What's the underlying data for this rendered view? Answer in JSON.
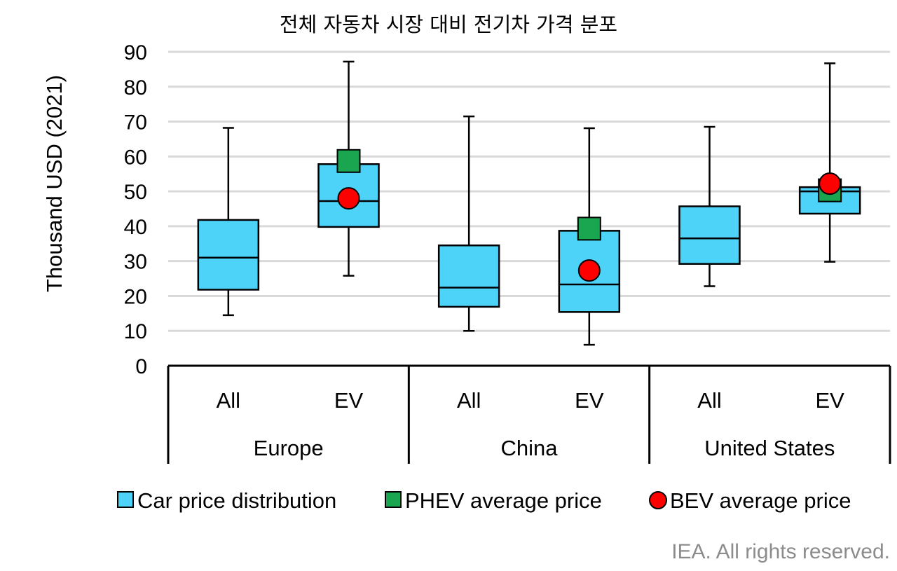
{
  "title": "전체 자동차 시장 대비 전기차 가격 분포",
  "credit": "IEA. All rights reserved.",
  "colors": {
    "box": "#4dd2f8",
    "phev": "#1aa650",
    "bev": "#ff0000",
    "grid": "#d9d9d9",
    "credit": "#8c8c8c"
  },
  "chart_data": {
    "type": "box",
    "ylabel": "Thousand USD (2021)",
    "ylim": [
      0,
      90
    ],
    "yticks": [
      0,
      10,
      20,
      30,
      40,
      50,
      60,
      70,
      80,
      90
    ],
    "grid": true,
    "legend_position": "bottom",
    "groups": [
      "Europe",
      "China",
      "United States"
    ],
    "categories": [
      {
        "group": "Europe",
        "label": "All",
        "min": 14.5,
        "q1": 21.8,
        "median": 31,
        "q3": 41.8,
        "max": 68.2
      },
      {
        "group": "Europe",
        "label": "EV",
        "min": 25.8,
        "q1": 39.8,
        "median": 47.2,
        "q3": 57.8,
        "max": 87.2,
        "phev_avg": 58.7,
        "bev_avg": 48
      },
      {
        "group": "China",
        "label": "All",
        "min": 10,
        "q1": 16.9,
        "median": 22.4,
        "q3": 34.5,
        "max": 71.5
      },
      {
        "group": "China",
        "label": "EV",
        "min": 6,
        "q1": 15.4,
        "median": 23.3,
        "q3": 38.7,
        "max": 68.1,
        "phev_avg": 39.3,
        "bev_avg": 27.3
      },
      {
        "group": "United States",
        "label": "All",
        "min": 22.8,
        "q1": 29.2,
        "median": 36.5,
        "q3": 45.7,
        "max": 68.5
      },
      {
        "group": "United States",
        "label": "EV",
        "min": 29.8,
        "q1": 43.6,
        "median": 50,
        "q3": 51.2,
        "max": 86.7,
        "phev_avg": 50.3,
        "bev_avg": 52.2
      }
    ],
    "legend": [
      "Car price distribution",
      "PHEV average price",
      "BEV average price"
    ]
  }
}
